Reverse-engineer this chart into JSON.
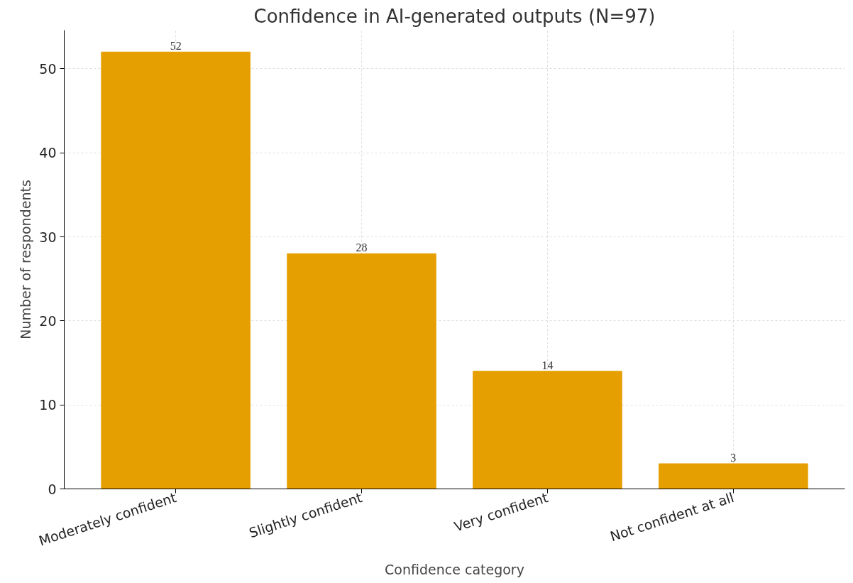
{
  "chart_data": {
    "type": "bar",
    "title": "Confidence in AI-generated outputs (N=97)",
    "xlabel": "Confidence category",
    "ylabel": "Number of respondents",
    "categories": [
      "Moderately confident",
      "Slightly confident",
      "Very confident",
      "Not confident at all"
    ],
    "values": [
      52,
      28,
      14,
      3
    ],
    "color": "#e69f00",
    "ylim": [
      0,
      54.6
    ],
    "yticks": [
      0,
      10,
      20,
      30,
      40,
      50
    ],
    "grid": true,
    "data_labels": true
  }
}
